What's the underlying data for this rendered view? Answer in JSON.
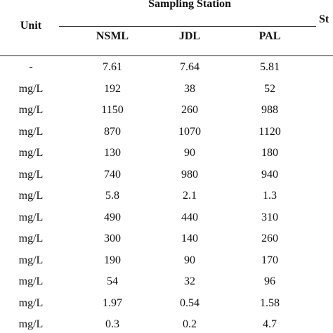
{
  "table": {
    "header": {
      "unit": "Unit",
      "group": "Sampling Station",
      "stations": [
        "NSML",
        "JDL",
        "PAL"
      ],
      "cut_label": "St"
    },
    "rows": [
      {
        "unit": "-",
        "values": [
          "7.61",
          "7.64",
          "5.81"
        ]
      },
      {
        "unit": "mg/L",
        "values": [
          "192",
          "38",
          "52"
        ]
      },
      {
        "unit": "mg/L",
        "values": [
          "1150",
          "260",
          "988"
        ]
      },
      {
        "unit": "mg/L",
        "values": [
          "870",
          "1070",
          "1120"
        ]
      },
      {
        "unit": "mg/L",
        "values": [
          "130",
          "90",
          "180"
        ]
      },
      {
        "unit": "mg/L",
        "values": [
          "740",
          "980",
          "940"
        ]
      },
      {
        "unit": "mg/L",
        "values": [
          "5.8",
          "2.1",
          "1.3"
        ]
      },
      {
        "unit": "mg/L",
        "values": [
          "490",
          "440",
          "310"
        ]
      },
      {
        "unit": "mg/L",
        "values": [
          "300",
          "140",
          "260"
        ]
      },
      {
        "unit": "mg/L",
        "values": [
          "190",
          "90",
          "170"
        ]
      },
      {
        "unit": "mg/L",
        "values": [
          "54",
          "32",
          "96"
        ]
      },
      {
        "unit": "mg/L",
        "values": [
          "1.97",
          "0.54",
          "1.58"
        ]
      },
      {
        "unit": "mg/L",
        "values": [
          "0.3",
          "0.2",
          "4.7"
        ]
      }
    ]
  }
}
